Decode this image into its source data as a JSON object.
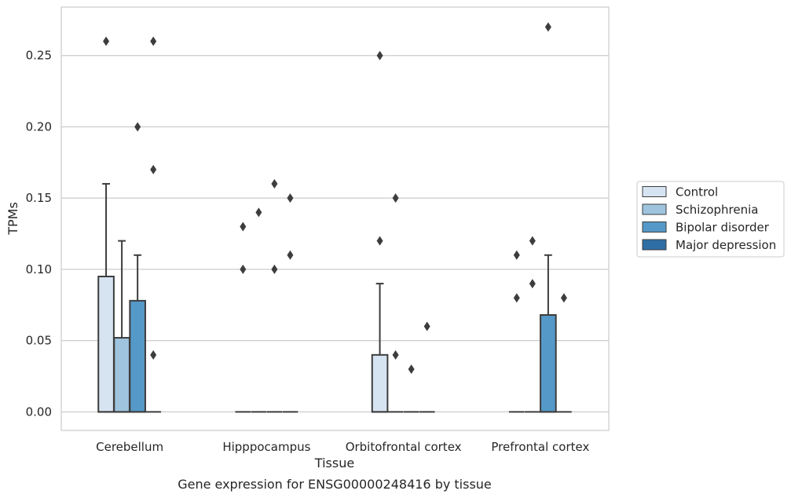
{
  "caption": "Gene expression for ENSG00000248416 by tissue",
  "chart_data": {
    "type": "box",
    "xlabel": "Tissue",
    "ylabel": "TPMs",
    "categories": [
      "Cerebellum",
      "Hipppocampus",
      "Orbitofrontal cortex",
      "Prefrontal cortex"
    ],
    "ylim": [
      -0.013,
      0.284
    ],
    "yticks": [
      0.0,
      0.05,
      0.1,
      0.15,
      0.2,
      0.25
    ],
    "ytick_labels": [
      "0.00",
      "0.05",
      "0.10",
      "0.15",
      "0.20",
      "0.25"
    ],
    "grid": "horizontal",
    "legend_position": "right",
    "series": [
      {
        "name": "Control",
        "color": "#d6e4f2",
        "boxes": [
          {
            "q1": 0.0,
            "median": 0.0,
            "q3": 0.095,
            "whisker_low": 0.0,
            "whisker_high": 0.16,
            "outliers": [
              0.26
            ]
          },
          {
            "q1": 0.0,
            "median": 0.0,
            "q3": 0.0,
            "whisker_low": 0.0,
            "whisker_high": 0.0,
            "outliers": [
              0.13,
              0.1
            ]
          },
          {
            "q1": 0.0,
            "median": 0.0,
            "q3": 0.04,
            "whisker_low": 0.0,
            "whisker_high": 0.09,
            "outliers": [
              0.25,
              0.12
            ]
          },
          {
            "q1": 0.0,
            "median": 0.0,
            "q3": 0.0,
            "whisker_low": 0.0,
            "whisker_high": 0.0,
            "outliers": [
              0.11,
              0.08
            ]
          }
        ]
      },
      {
        "name": "Schizophrenia",
        "color": "#9ec4de",
        "boxes": [
          {
            "q1": 0.0,
            "median": 0.0,
            "q3": 0.052,
            "whisker_low": 0.0,
            "whisker_high": 0.12,
            "outliers": []
          },
          {
            "q1": 0.0,
            "median": 0.0,
            "q3": 0.0,
            "whisker_low": 0.0,
            "whisker_high": 0.0,
            "outliers": [
              0.14
            ]
          },
          {
            "q1": 0.0,
            "median": 0.0,
            "q3": 0.0,
            "whisker_low": 0.0,
            "whisker_high": 0.0,
            "outliers": [
              0.15,
              0.04
            ]
          },
          {
            "q1": 0.0,
            "median": 0.0,
            "q3": 0.0,
            "whisker_low": 0.0,
            "whisker_high": 0.0,
            "outliers": [
              0.12,
              0.09
            ]
          }
        ]
      },
      {
        "name": "Bipolar disorder",
        "color": "#5599c8",
        "boxes": [
          {
            "q1": 0.0,
            "median": 0.0,
            "q3": 0.078,
            "whisker_low": 0.0,
            "whisker_high": 0.11,
            "outliers": [
              0.2
            ]
          },
          {
            "q1": 0.0,
            "median": 0.0,
            "q3": 0.0,
            "whisker_low": 0.0,
            "whisker_high": 0.0,
            "outliers": [
              0.16,
              0.1
            ]
          },
          {
            "q1": 0.0,
            "median": 0.0,
            "q3": 0.0,
            "whisker_low": 0.0,
            "whisker_high": 0.0,
            "outliers": [
              0.03
            ]
          },
          {
            "q1": 0.0,
            "median": 0.0,
            "q3": 0.068,
            "whisker_low": 0.0,
            "whisker_high": 0.11,
            "outliers": [
              0.27
            ]
          }
        ]
      },
      {
        "name": "Major depression",
        "color": "#2e6ea5",
        "boxes": [
          {
            "q1": 0.0,
            "median": 0.0,
            "q3": 0.0,
            "whisker_low": 0.0,
            "whisker_high": 0.0,
            "outliers": [
              0.26,
              0.17,
              0.04
            ]
          },
          {
            "q1": 0.0,
            "median": 0.0,
            "q3": 0.0,
            "whisker_low": 0.0,
            "whisker_high": 0.0,
            "outliers": [
              0.15,
              0.11
            ]
          },
          {
            "q1": 0.0,
            "median": 0.0,
            "q3": 0.0,
            "whisker_low": 0.0,
            "whisker_high": 0.0,
            "outliers": [
              0.06
            ]
          },
          {
            "q1": 0.0,
            "median": 0.0,
            "q3": 0.0,
            "whisker_low": 0.0,
            "whisker_high": 0.0,
            "outliers": [
              0.08
            ]
          }
        ]
      }
    ]
  }
}
